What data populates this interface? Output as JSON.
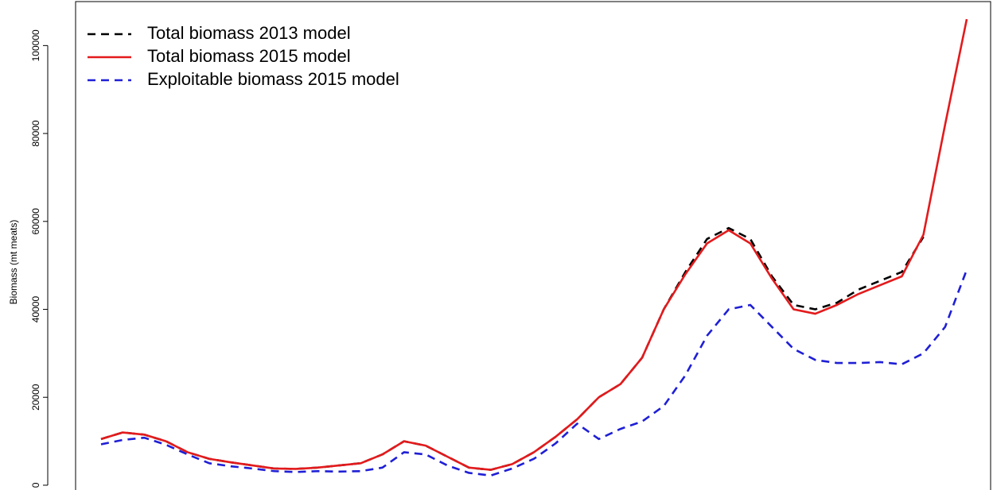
{
  "chart_data": {
    "type": "line",
    "y_label": "Biomass (mt meats)",
    "ylim": [
      -1000,
      110000
    ],
    "yticks": [
      0,
      20000,
      40000,
      60000,
      80000,
      100000
    ],
    "legend": "upper left",
    "series": [
      {
        "name": "Total biomass 2013 model",
        "color": "#000000",
        "dash": "dashed",
        "values": [
          10500,
          12000,
          11500,
          10000,
          7500,
          6000,
          5200,
          4500,
          3800,
          3700,
          4000,
          4500,
          5000,
          7000,
          10000,
          9000,
          6500,
          4000,
          3500,
          4800,
          7500,
          11000,
          15000,
          20000,
          23000,
          29000,
          40000,
          48500,
          56000,
          58500,
          56000,
          47500,
          41000,
          40000,
          41500,
          44500,
          46500,
          48500,
          56500,
          null,
          null
        ]
      },
      {
        "name": "Total biomass 2015 model",
        "color": "#e31a1c",
        "dash": "solid",
        "values": [
          10500,
          12000,
          11500,
          10000,
          7500,
          6000,
          5200,
          4500,
          3800,
          3700,
          4000,
          4500,
          5000,
          7000,
          10000,
          9000,
          6500,
          4000,
          3500,
          4800,
          7500,
          11000,
          15000,
          20000,
          23000,
          29000,
          40000,
          48000,
          55000,
          58000,
          55000,
          47000,
          40000,
          39000,
          41000,
          43500,
          45500,
          47500,
          57000,
          82000,
          106000
        ]
      },
      {
        "name": "Exploitable biomass 2015 model",
        "color": "#1f1fd6",
        "dash": "dashed",
        "values": [
          9300,
          10300,
          10800,
          9200,
          7000,
          5000,
          4300,
          3800,
          3200,
          3000,
          3200,
          3100,
          3200,
          4000,
          7500,
          7000,
          4500,
          2800,
          2200,
          3800,
          6000,
          9500,
          14000,
          10500,
          12800,
          14500,
          18000,
          25000,
          34000,
          40000,
          41000,
          36000,
          31000,
          28500,
          27800,
          27800,
          28000,
          27500,
          30000,
          36000,
          49000
        ]
      }
    ]
  }
}
